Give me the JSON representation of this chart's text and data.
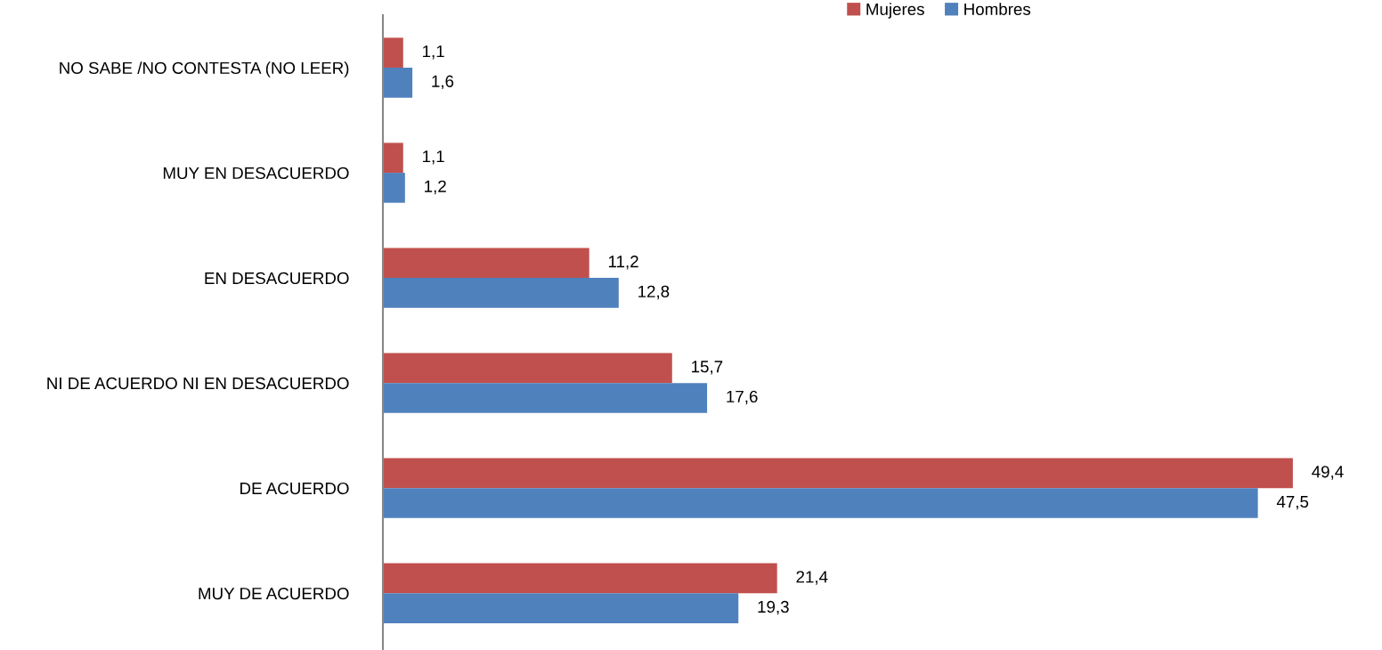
{
  "chart_data": {
    "type": "bar",
    "orientation": "horizontal",
    "categories": [
      "NO SABE /NO CONTESTA (NO LEER)",
      "MUY EN DESACUERDO",
      "EN DESACUERDO",
      "NI DE ACUERDO NI EN DESACUERDO",
      "DE ACUERDO",
      "MUY DE ACUERDO"
    ],
    "series": [
      {
        "name": "Mujeres",
        "color": "#c0504d",
        "values": [
          1.1,
          1.1,
          11.2,
          15.7,
          49.4,
          21.4
        ],
        "value_labels": [
          "1,1",
          "1,1",
          "11,2",
          "15,7",
          "49,4",
          "21,4"
        ]
      },
      {
        "name": "Hombres",
        "color": "#4f81bd",
        "values": [
          1.6,
          1.2,
          12.8,
          17.6,
          47.5,
          19.3
        ],
        "value_labels": [
          "1,6",
          "1,2",
          "12,8",
          "17,6",
          "47,5",
          "19,3"
        ]
      }
    ],
    "legend": "top",
    "grid": false,
    "tick_labels": "y"
  }
}
